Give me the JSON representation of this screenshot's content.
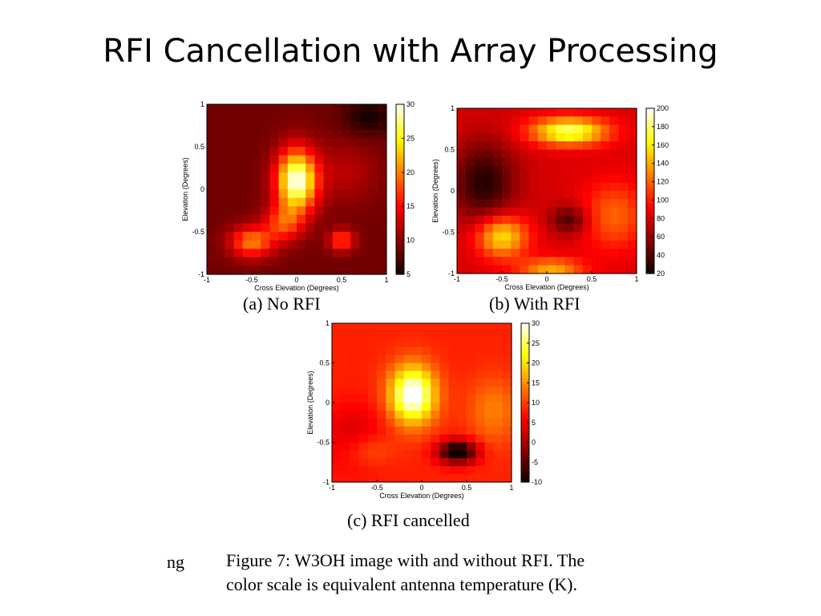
{
  "slide": {
    "title": "RFI Cancellation with Array Processing",
    "fragment": "ng",
    "figure_caption_line1": "Figure 7:  W3OH image with and without RFI. The",
    "figure_caption_line2": "color scale is equivalent antenna temperature (K)."
  },
  "chart_data": [
    {
      "type": "heatmap",
      "caption": "(a) No RFI",
      "xlabel": "Cross Elevation (Degrees)",
      "ylabel": "Elevation (Degrees)",
      "xlim": [
        -1,
        1
      ],
      "ylim": [
        -1,
        1
      ],
      "xticks": [
        "-1",
        "-0.5",
        "0",
        "0.5",
        "1"
      ],
      "yticks": [
        "1",
        "0.5",
        "0",
        "-0.5",
        "-1"
      ],
      "colorbar_range": [
        5,
        30
      ],
      "colorbar_ticks": [
        "30",
        "25",
        "20",
        "15",
        "10",
        "5"
      ],
      "colormap": "hot",
      "background_level": 9,
      "peaks": [
        {
          "x": 0.0,
          "y": 0.1,
          "amplitude": 21,
          "sigma_x": 0.16,
          "sigma_y": 0.26
        },
        {
          "x": -0.15,
          "y": -0.4,
          "amplitude": 8,
          "sigma_x": 0.15,
          "sigma_y": 0.15
        },
        {
          "x": -0.5,
          "y": -0.62,
          "amplitude": 11,
          "sigma_x": 0.17,
          "sigma_y": 0.13
        },
        {
          "x": 0.5,
          "y": -0.6,
          "amplitude": 9,
          "sigma_x": 0.1,
          "sigma_y": 0.09
        },
        {
          "x": 0.55,
          "y": 0.2,
          "amplitude": 3,
          "sigma_x": 0.25,
          "sigma_y": 0.25
        },
        {
          "x": 0.8,
          "y": 0.85,
          "amplitude": -4,
          "sigma_x": 0.2,
          "sigma_y": 0.15
        }
      ]
    },
    {
      "type": "heatmap",
      "caption": "(b) With RFI",
      "xlabel": "Cross Elevation (Degrees)",
      "ylabel": "Elevation (Degrees)",
      "xlim": [
        -1,
        1
      ],
      "ylim": [
        -1,
        1
      ],
      "xticks": [
        "-1",
        "-0.5",
        "0",
        "0.5",
        "1"
      ],
      "yticks": [
        "1",
        "0.5",
        "0",
        "-0.5",
        "-1"
      ],
      "colorbar_range": [
        20,
        200
      ],
      "colorbar_ticks": [
        "200",
        "180",
        "160",
        "140",
        "120",
        "100",
        "80",
        "60",
        "40",
        "20"
      ],
      "colormap": "hot",
      "background_level": 80,
      "peaks": [
        {
          "x": 0.25,
          "y": 0.72,
          "amplitude": 100,
          "sigma_x": 0.3,
          "sigma_y": 0.12
        },
        {
          "x": -0.5,
          "y": -0.55,
          "amplitude": 80,
          "sigma_x": 0.2,
          "sigma_y": 0.18
        },
        {
          "x": -0.7,
          "y": 0.1,
          "amplitude": -55,
          "sigma_x": 0.25,
          "sigma_y": 0.35
        },
        {
          "x": 0.25,
          "y": -0.35,
          "amplitude": -45,
          "sigma_x": 0.15,
          "sigma_y": 0.12
        },
        {
          "x": 0.75,
          "y": -0.3,
          "amplitude": 40,
          "sigma_x": 0.25,
          "sigma_y": 0.3
        },
        {
          "x": 0.05,
          "y": -0.95,
          "amplitude": 60,
          "sigma_x": 0.25,
          "sigma_y": 0.1
        }
      ]
    },
    {
      "type": "heatmap",
      "caption": "(c) RFI cancelled",
      "xlabel": "Cross Elevation (Degrees)",
      "ylabel": "Elevation (Degrees)",
      "xlim": [
        -1,
        1
      ],
      "ylim": [
        -1,
        1
      ],
      "xticks": [
        "-1",
        "-0.5",
        "0",
        "0.5",
        "1"
      ],
      "yticks": [
        "1",
        "0.5",
        "0",
        "-0.5",
        "-1"
      ],
      "colorbar_range": [
        -10,
        30
      ],
      "colorbar_ticks": [
        "30",
        "25",
        "20",
        "15",
        "10",
        "5",
        "0",
        "-5",
        "-10"
      ],
      "colormap": "hot",
      "background_level": 8,
      "peaks": [
        {
          "x": -0.1,
          "y": 0.1,
          "amplitude": 24,
          "sigma_x": 0.18,
          "sigma_y": 0.26
        },
        {
          "x": 0.4,
          "y": -0.62,
          "amplitude": -22,
          "sigma_x": 0.15,
          "sigma_y": 0.1
        },
        {
          "x": -0.75,
          "y": -0.45,
          "amplitude": -5,
          "sigma_x": 0.25,
          "sigma_y": 0.3
        },
        {
          "x": 0.8,
          "y": -0.1,
          "amplitude": 6,
          "sigma_x": 0.2,
          "sigma_y": 0.3
        },
        {
          "x": -0.6,
          "y": -0.6,
          "amplitude": 5,
          "sigma_x": 0.2,
          "sigma_y": 0.15
        }
      ]
    }
  ]
}
